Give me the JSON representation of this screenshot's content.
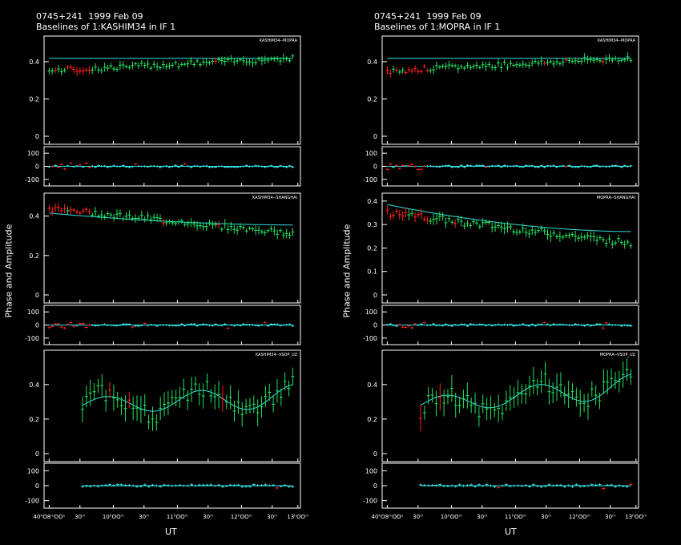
{
  "plots": [
    {
      "title_line1": "0745+241  1999 Feb 09",
      "title_line2": "Baselines of 1:KASHIM34 in IF 1",
      "ylabel": "Phase and Amplitude",
      "xlabel": "UT",
      "xticks": [
        "40ʰO8ᵐOOˢ",
        "30ᵐ",
        "10ʰOOᵐ",
        "30ᵐ",
        "11ʰOOᵐ",
        "30ᵐ",
        "12ʰOOᵐ",
        "30ᵐ",
        "13ʰOOᵐ"
      ],
      "panels": [
        {
          "label": "KASHIM34--MOPRA",
          "amp_ticks": [
            "0",
            "0.2",
            "0.4"
          ],
          "amp_ylim": [
            0,
            0.52
          ],
          "amp_model_start": 0.418,
          "amp_model_end": 0.418,
          "amp_start": 0.35,
          "amp_end": 0.42
        },
        {
          "label": "KASHIM34--SHANGHAI",
          "amp_ticks": [
            "0",
            "0.2",
            "0.4"
          ],
          "amp_ylim": [
            0,
            0.5
          ],
          "amp_model_start": 0.415,
          "amp_model_end": 0.355,
          "amp_start": 0.44,
          "amp_end": 0.31
        },
        {
          "label": "KASHIM34--VSOP_UZ",
          "amp_ticks": [
            "0",
            "0.2",
            "0.4"
          ],
          "amp_ylim": [
            0,
            0.58
          ],
          "amp_model_start": 0.28,
          "amp_model_end": 0.33,
          "amp_start": 0.28,
          "amp_end": 0.33
        }
      ]
    },
    {
      "title_line1": "0745+241  1999 Feb 09",
      "title_line2": "Baselines of 1:MOPRA in IF 1",
      "ylabel": "Phase and Amplitude",
      "xlabel": "UT",
      "xticks": [
        "40ʰO8ᵐOOˢ",
        "30ᵐ",
        "10ʰOOᵐ",
        "30ᵐ",
        "11ʰOOᵐ",
        "30ᵐ",
        "12ʰOOᵐ",
        "30ᵐ",
        "13ʰOOᵐ"
      ],
      "panels": [
        {
          "label": "KASHIM34--MOPRA",
          "amp_ticks": [
            "0",
            "0.2",
            "0.4"
          ],
          "amp_ylim": [
            0,
            0.52
          ],
          "amp_model_start": 0.418,
          "amp_model_end": 0.418,
          "amp_start": 0.35,
          "amp_end": 0.42
        },
        {
          "label": "MOPRA--SHANGHAI",
          "amp_ticks": [
            "0",
            "0.1",
            "0.2",
            "0.3",
            "0.4"
          ],
          "amp_ylim": [
            0,
            0.42
          ],
          "amp_model_start": 0.385,
          "amp_model_end": 0.27,
          "amp_start": 0.35,
          "amp_end": 0.22
        },
        {
          "label": "MOPRA--VSOP_UZ",
          "amp_ticks": [
            "0",
            "0.2",
            "0.4"
          ],
          "amp_ylim": [
            0,
            0.58
          ],
          "amp_model_start": 0.28,
          "amp_model_end": 0.39,
          "amp_start": 0.25,
          "amp_end": 0.42
        }
      ]
    }
  ],
  "phase_ticks": [
    "-100",
    "0",
    "100"
  ],
  "phase_ylim": [
    -150,
    150
  ],
  "chart_data": [
    {
      "type": "scatter",
      "title": "0745+241  1999 Feb 09 / Baselines of 1:KASHIM34 in IF 1",
      "xlabel": "UT",
      "ylabel": "Phase and Amplitude",
      "x_range": [
        "09:38",
        "13:00"
      ],
      "series": [
        {
          "name": "KASHIM34--MOPRA",
          "amplitude_model": 0.418,
          "amplitude_approx": [
            0.35,
            0.42
          ],
          "phase_approx": 0
        },
        {
          "name": "KASHIM34--SHANGHAI",
          "amplitude_model": [
            0.415,
            0.355
          ],
          "amplitude_approx": [
            0.44,
            0.31
          ],
          "phase_approx": 0
        },
        {
          "name": "KASHIM34--VSOP_UZ",
          "amplitude_model": [
            0.28,
            0.33
          ],
          "amplitude_approx": [
            0.2,
            0.45
          ],
          "phase_approx": 0
        }
      ]
    },
    {
      "type": "scatter",
      "title": "0745+241  1999 Feb 09 / Baselines of 1:MOPRA in IF 1",
      "xlabel": "UT",
      "ylabel": "Phase and Amplitude",
      "x_range": [
        "09:38",
        "13:00"
      ],
      "series": [
        {
          "name": "KASHIM34--MOPRA",
          "amplitude_model": 0.418,
          "amplitude_approx": [
            0.35,
            0.42
          ],
          "phase_approx": 0
        },
        {
          "name": "MOPRA--SHANGHAI",
          "amplitude_model": [
            0.385,
            0.27
          ],
          "amplitude_approx": [
            0.35,
            0.22
          ],
          "phase_approx": 0
        },
        {
          "name": "MOPRA--VSOP_UZ",
          "amplitude_model": [
            0.28,
            0.39
          ],
          "amplitude_approx": [
            0.2,
            0.48
          ],
          "phase_approx": 0
        }
      ]
    }
  ],
  "colors": {
    "good": "#22e060",
    "flagged": "#ff2020",
    "model": "#33e0e0",
    "frame": "#ffffff"
  }
}
